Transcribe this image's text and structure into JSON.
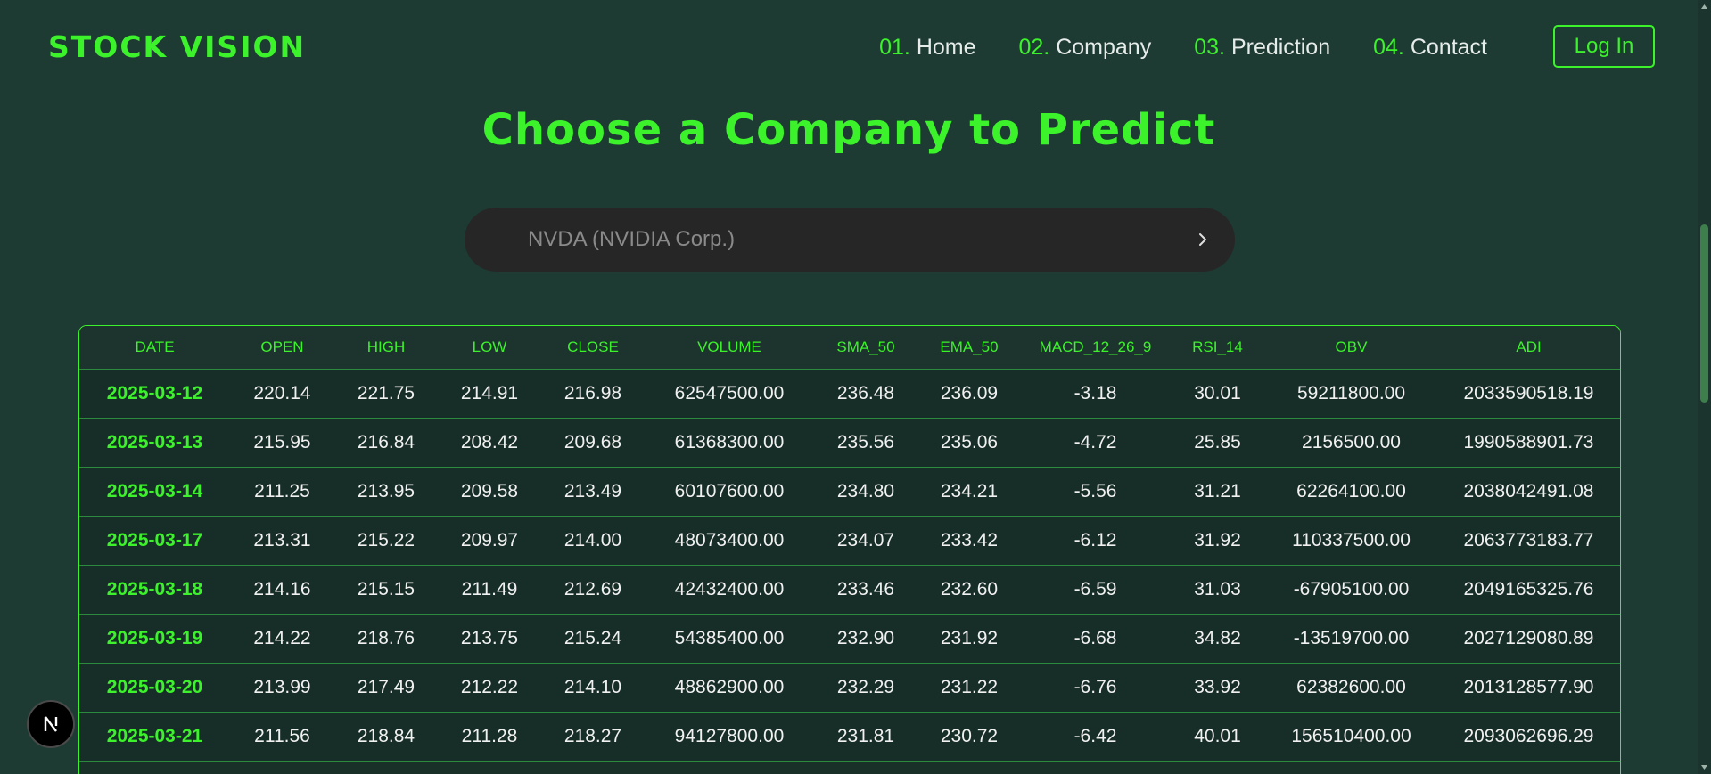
{
  "app": {
    "logo": "STOCK VISION"
  },
  "nav": {
    "items": [
      {
        "num": "01.",
        "label": "Home"
      },
      {
        "num": "02.",
        "label": "Company"
      },
      {
        "num": "03.",
        "label": "Prediction"
      },
      {
        "num": "04.",
        "label": "Contact"
      }
    ],
    "login_label": "Log In"
  },
  "main": {
    "title": "Choose a Company to Predict",
    "company_select": {
      "value": "NVDA (NVIDIA Corp.)",
      "icon": "chevron-right-icon"
    }
  },
  "table": {
    "columns": [
      "DATE",
      "OPEN",
      "HIGH",
      "LOW",
      "CLOSE",
      "VOLUME",
      "SMA_50",
      "EMA_50",
      "MACD_12_26_9",
      "RSI_14",
      "OBV",
      "ADI"
    ],
    "rows": [
      [
        "2025-03-12",
        "220.14",
        "221.75",
        "214.91",
        "216.98",
        "62547500.00",
        "236.48",
        "236.09",
        "-3.18",
        "30.01",
        "59211800.00",
        "2033590518.19"
      ],
      [
        "2025-03-13",
        "215.95",
        "216.84",
        "208.42",
        "209.68",
        "61368300.00",
        "235.56",
        "235.06",
        "-4.72",
        "25.85",
        "2156500.00",
        "1990588901.73"
      ],
      [
        "2025-03-14",
        "211.25",
        "213.95",
        "209.58",
        "213.49",
        "60107600.00",
        "234.80",
        "234.21",
        "-5.56",
        "31.21",
        "62264100.00",
        "2038042491.08"
      ],
      [
        "2025-03-17",
        "213.31",
        "215.22",
        "209.97",
        "214.00",
        "48073400.00",
        "234.07",
        "233.42",
        "-6.12",
        "31.92",
        "110337500.00",
        "2063773183.77"
      ],
      [
        "2025-03-18",
        "214.16",
        "215.15",
        "211.49",
        "212.69",
        "42432400.00",
        "233.46",
        "232.60",
        "-6.59",
        "31.03",
        "-67905100.00",
        "2049165325.76"
      ],
      [
        "2025-03-19",
        "214.22",
        "218.76",
        "213.75",
        "215.24",
        "54385400.00",
        "232.90",
        "231.92",
        "-6.68",
        "34.82",
        "-13519700.00",
        "2027129080.89"
      ],
      [
        "2025-03-20",
        "213.99",
        "217.49",
        "212.22",
        "214.10",
        "48862900.00",
        "232.29",
        "231.22",
        "-6.76",
        "33.92",
        "62382600.00",
        "2013128577.90"
      ],
      [
        "2025-03-21",
        "211.56",
        "218.84",
        "211.28",
        "218.27",
        "94127800.00",
        "231.81",
        "230.72",
        "-6.42",
        "40.01",
        "156510400.00",
        "2093062696.29"
      ]
    ]
  },
  "badge": {
    "letter": "N",
    "icon": "nextjs-logo-icon"
  },
  "colors": {
    "background": "#1d3a33",
    "accent": "#3cf22b",
    "select_bg": "#262626"
  }
}
